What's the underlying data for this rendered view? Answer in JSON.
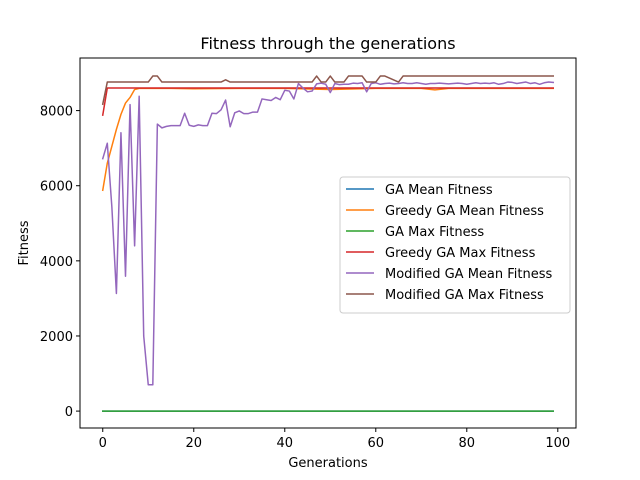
{
  "chart_data": {
    "type": "line",
    "title": "Fitness through the generations",
    "xlabel": "Generations",
    "ylabel": "Fitness",
    "xlim": [
      -5,
      104
    ],
    "ylim": [
      -450,
      9400
    ],
    "xticks": [
      0,
      20,
      40,
      60,
      80,
      100
    ],
    "yticks": [
      0,
      2000,
      4000,
      6000,
      8000
    ],
    "grid": false,
    "legend_position": "center-right",
    "series": [
      {
        "name": "GA Mean Fitness",
        "color": "#1f77b4",
        "x": [
          0,
          99
        ],
        "y": [
          0,
          0
        ]
      },
      {
        "name": "Greedy GA Mean Fitness",
        "color": "#ff7f0e",
        "x": [
          0,
          1,
          2,
          3,
          4,
          5,
          6,
          7,
          8,
          10,
          15,
          20,
          30,
          40,
          50,
          60,
          70,
          73,
          76,
          80,
          90,
          99
        ],
        "y": [
          5880,
          6600,
          7050,
          7500,
          7900,
          8200,
          8350,
          8560,
          8590,
          8590,
          8590,
          8580,
          8590,
          8590,
          8560,
          8590,
          8590,
          8550,
          8590,
          8590,
          8590,
          8590
        ]
      },
      {
        "name": "GA Max Fitness",
        "color": "#2ca02c",
        "x": [
          0,
          99
        ],
        "y": [
          0,
          0
        ]
      },
      {
        "name": "Greedy GA Max Fitness",
        "color": "#d62728",
        "x": [
          0,
          1,
          99
        ],
        "y": [
          7880,
          8600,
          8600
        ]
      },
      {
        "name": "Modified GA Mean Fitness",
        "color": "#9467bd",
        "x": [
          0,
          1,
          2,
          3,
          4,
          5,
          6,
          7,
          8,
          9,
          10,
          11,
          12,
          13,
          14,
          15,
          16,
          17,
          18,
          19,
          20,
          21,
          22,
          23,
          24,
          25,
          26,
          27,
          28,
          29,
          30,
          31,
          32,
          33,
          34,
          35,
          36,
          37,
          38,
          39,
          40,
          41,
          42,
          43,
          44,
          45,
          46,
          47,
          48,
          49,
          50,
          51,
          52,
          53,
          54,
          55,
          56,
          57,
          58,
          59,
          60,
          61,
          62,
          63,
          64,
          65,
          66,
          67,
          68,
          69,
          70,
          71,
          72,
          73,
          74,
          75,
          76,
          77,
          78,
          79,
          80,
          81,
          82,
          83,
          84,
          85,
          86,
          87,
          88,
          89,
          90,
          91,
          92,
          93,
          94,
          95,
          96,
          97,
          98,
          99
        ],
        "y": [
          6720,
          7130,
          5440,
          3130,
          7410,
          3590,
          8160,
          4400,
          8380,
          2000,
          700,
          700,
          7640,
          7540,
          7580,
          7600,
          7600,
          7600,
          7930,
          7610,
          7580,
          7620,
          7600,
          7600,
          7930,
          7920,
          8020,
          8280,
          7570,
          7940,
          7990,
          7920,
          7920,
          7960,
          7960,
          8310,
          8290,
          8270,
          8350,
          8290,
          8540,
          8520,
          8310,
          8720,
          8600,
          8500,
          8520,
          8710,
          8730,
          8700,
          8480,
          8720,
          8690,
          8700,
          8700,
          8730,
          8720,
          8740,
          8500,
          8720,
          8740,
          8700,
          8720,
          8730,
          8710,
          8720,
          8740,
          8720,
          8720,
          8740,
          8720,
          8700,
          8720,
          8720,
          8730,
          8720,
          8710,
          8720,
          8730,
          8720,
          8700,
          8720,
          8740,
          8720,
          8730,
          8720,
          8740,
          8700,
          8720,
          8760,
          8750,
          8720,
          8740,
          8760,
          8720,
          8740,
          8700,
          8740,
          8760,
          8750
        ]
      },
      {
        "name": "Modified GA Max Fitness",
        "color": "#8c564b",
        "x": [
          0,
          1,
          2,
          10,
          11,
          12,
          13,
          26,
          27,
          28,
          46,
          47,
          48,
          49,
          50,
          51,
          53,
          54,
          55,
          57,
          58,
          59,
          60,
          61,
          62,
          65,
          66,
          99
        ],
        "y": [
          8170,
          8760,
          8760,
          8760,
          8920,
          8920,
          8760,
          8760,
          8820,
          8760,
          8760,
          8920,
          8760,
          8760,
          8920,
          8760,
          8760,
          8920,
          8920,
          8920,
          8760,
          8760,
          8760,
          8920,
          8920,
          8760,
          8920,
          8920
        ]
      }
    ]
  }
}
